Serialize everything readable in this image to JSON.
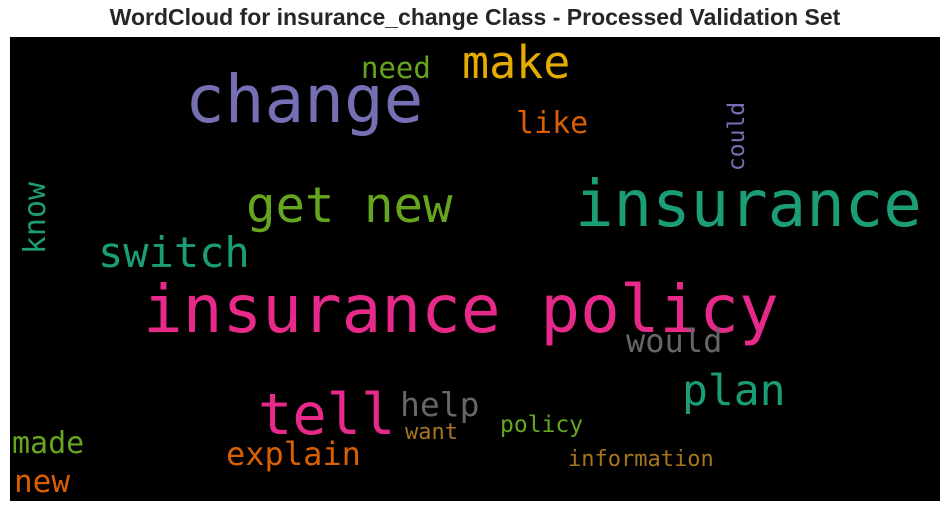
{
  "title": "WordCloud for insurance_change Class - Processed Validation Set",
  "words": [
    {
      "text": "insurance policy",
      "color": "#e7298a"
    },
    {
      "text": "insurance",
      "color": "#1b9e77"
    },
    {
      "text": "change",
      "color": "#7570b3"
    },
    {
      "text": "get new",
      "color": "#66a61e"
    },
    {
      "text": "tell",
      "color": "#e7298a"
    },
    {
      "text": "make",
      "color": "#e6ab02"
    },
    {
      "text": "switch",
      "color": "#1b9e77"
    },
    {
      "text": "plan",
      "color": "#1b9e77"
    },
    {
      "text": "need",
      "color": "#66a61e"
    },
    {
      "text": "like",
      "color": "#d95f02"
    },
    {
      "text": "could",
      "color": "#7570b3"
    },
    {
      "text": "know",
      "color": "#1b9e77"
    },
    {
      "text": "would",
      "color": "#666666"
    },
    {
      "text": "help",
      "color": "#666666"
    },
    {
      "text": "made",
      "color": "#66a61e"
    },
    {
      "text": "explain",
      "color": "#d95f02"
    },
    {
      "text": "want",
      "color": "#a6761d"
    },
    {
      "text": "policy",
      "color": "#66a61e"
    },
    {
      "text": "information",
      "color": "#a6761d"
    },
    {
      "text": "new",
      "color": "#d95f02"
    }
  ]
}
